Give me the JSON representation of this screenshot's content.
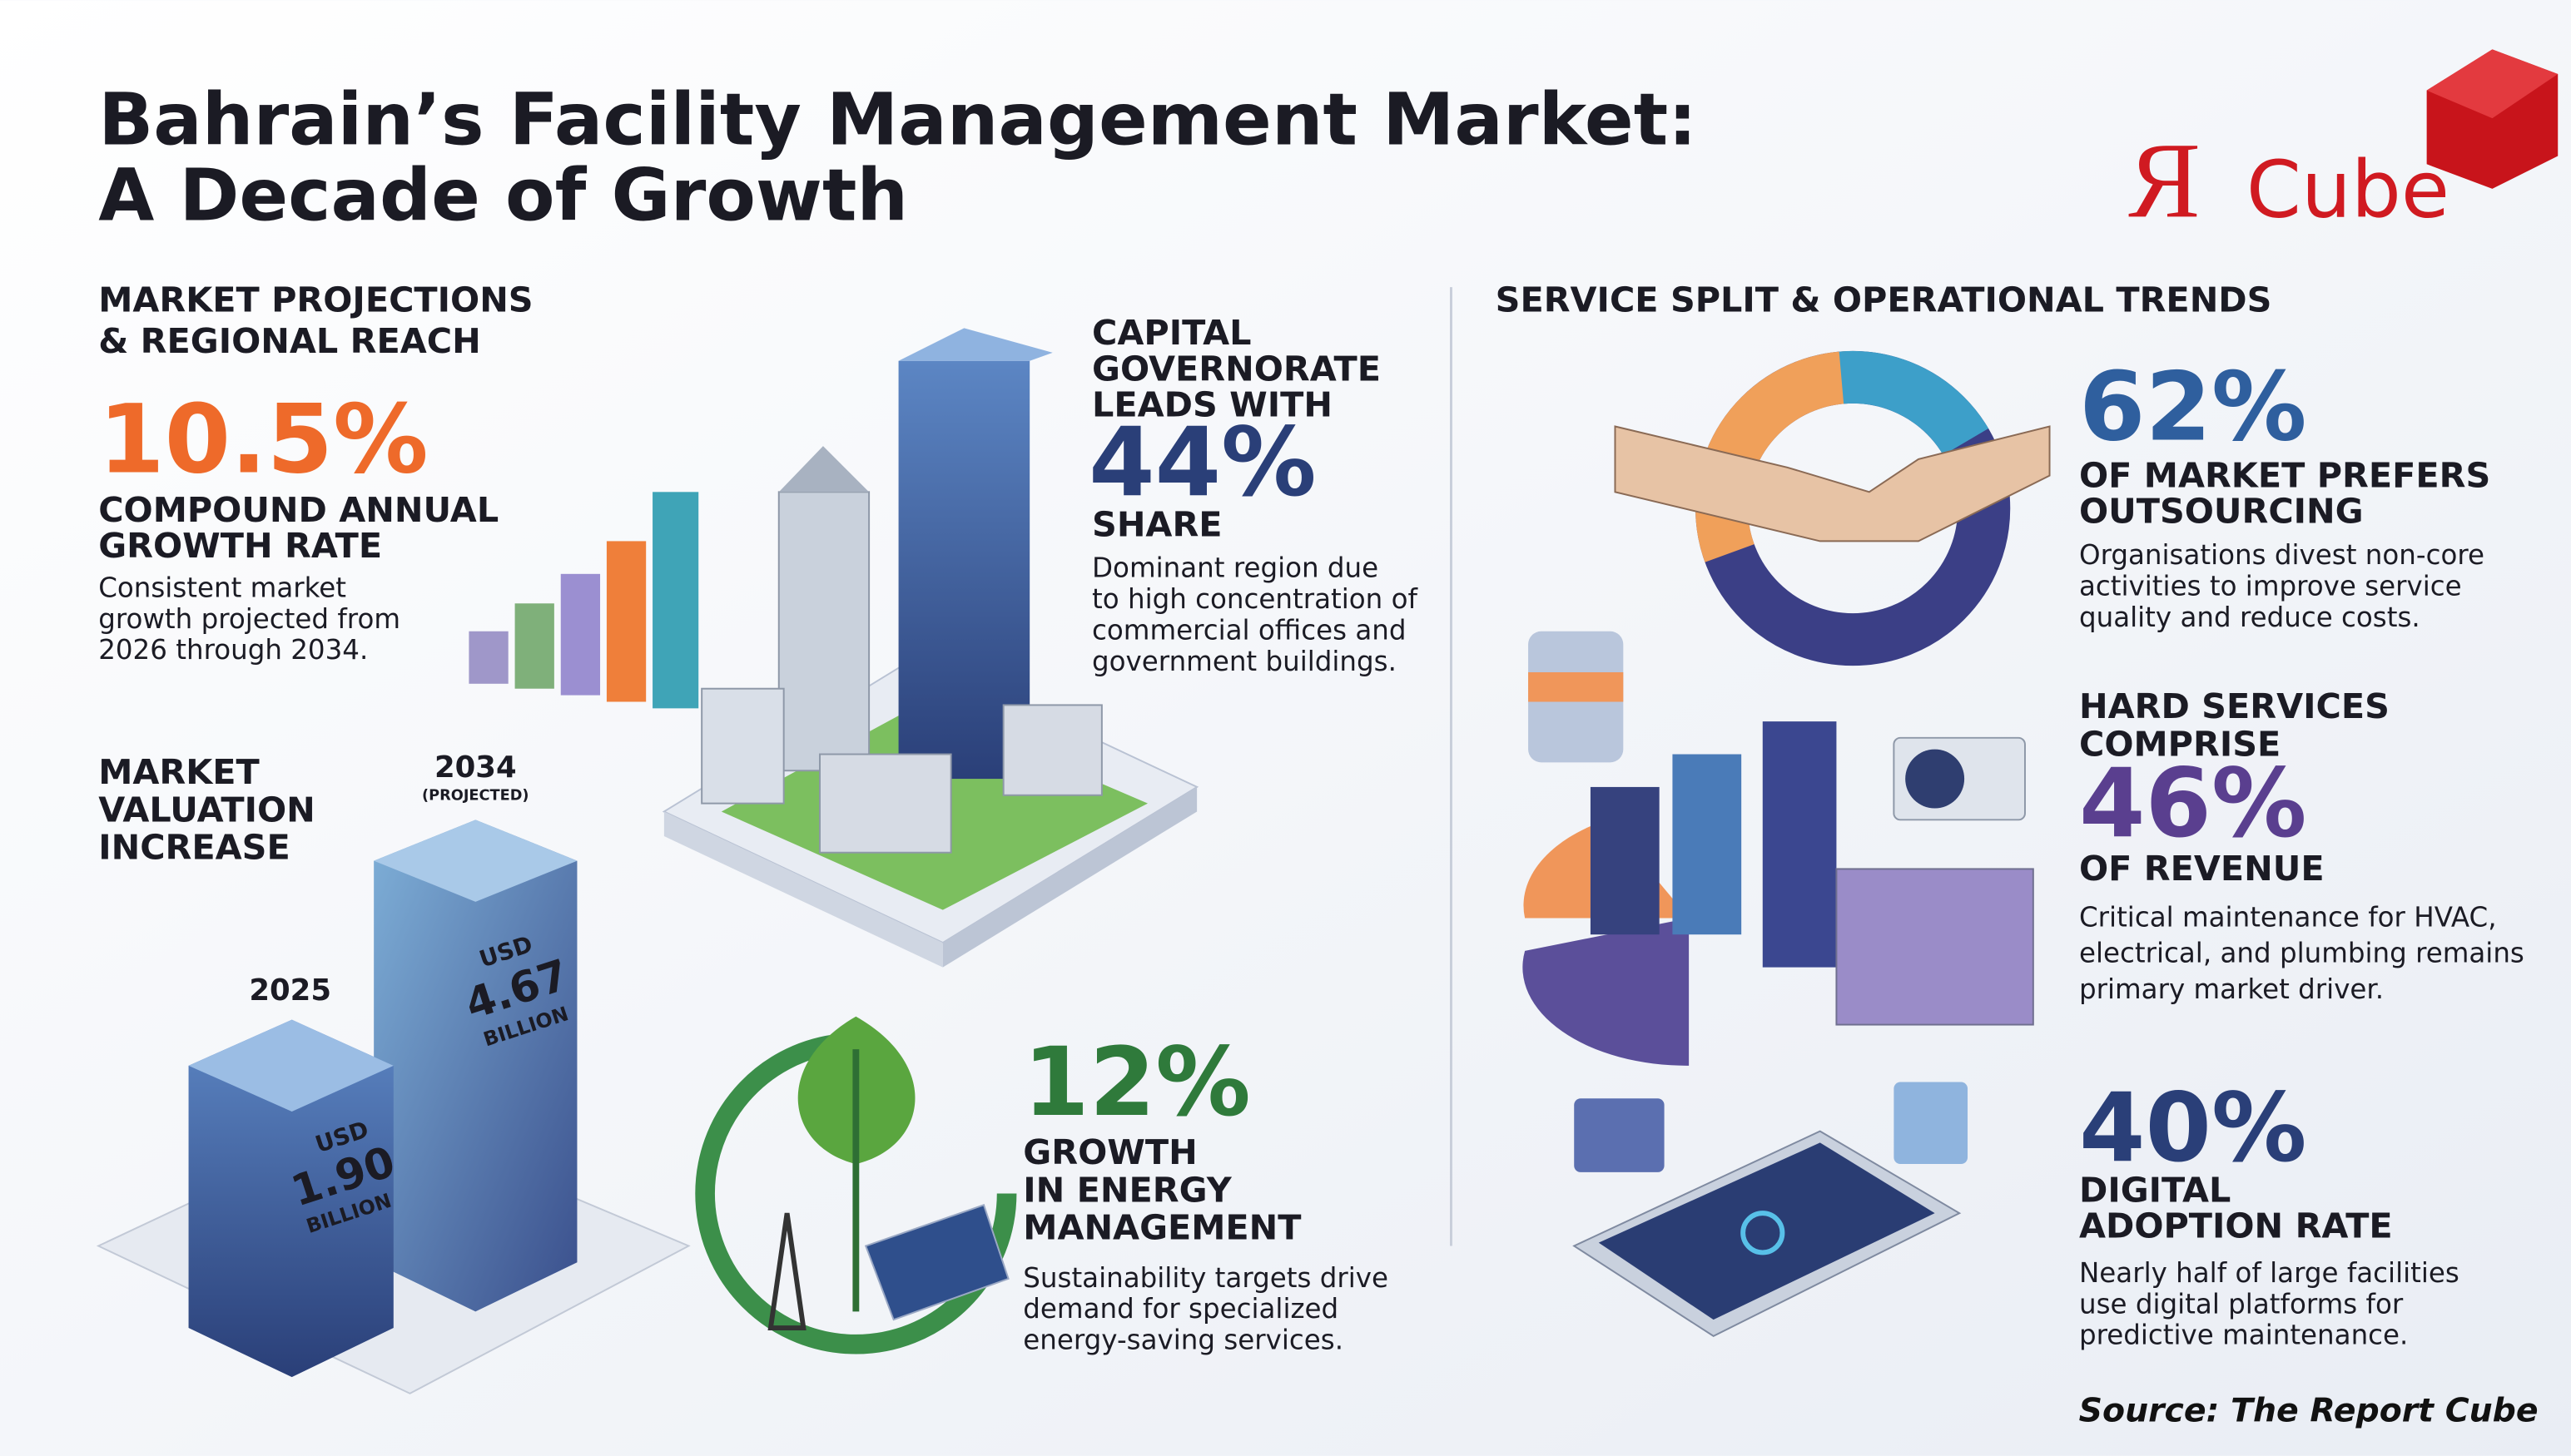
{
  "header": {
    "title": [
      "Bahrain’s Facility Management Market:",
      "A Decade of Growth"
    ]
  },
  "logo": {
    "letter": "Я",
    "word": "Cube"
  },
  "projections": {
    "heading": [
      "MARKET PROJECTIONS",
      "& REGIONAL REACH"
    ],
    "cagr": {
      "value": "10.5%",
      "label": [
        "COMPOUND ANNUAL",
        "GROWTH RATE"
      ],
      "description": [
        "Consistent market",
        "growth projected from",
        "2026 through 2034."
      ]
    }
  },
  "valuation": {
    "heading": [
      "MARKET",
      "VALUATION",
      "INCREASE"
    ],
    "end": {
      "year": "2034",
      "note": "(PROJECTED)",
      "amount": [
        "USD",
        "4.67",
        "BILLION"
      ]
    },
    "start": {
      "year": "2025",
      "amount": [
        "USD",
        "1.90",
        "BILLION"
      ]
    }
  },
  "capital": {
    "heading": [
      "CAPITAL",
      "GOVERNORATE",
      "LEADS WITH"
    ],
    "value": "44%",
    "label": "SHARE",
    "description": [
      "Dominant region due",
      "to high concentration of",
      "commercial offices and",
      "government buildings."
    ]
  },
  "energy": {
    "value": "12%",
    "label": [
      "GROWTH",
      "IN ENERGY",
      "MANAGEMENT"
    ],
    "description": [
      "Sustainability targets drive",
      "demand for specialized",
      "energy-saving services."
    ]
  },
  "services": {
    "heading": "SERVICE SPLIT & OPERATIONAL TRENDS",
    "outsourcing": {
      "value": "62%",
      "label": [
        "OF MARKET PREFERS",
        "OUTSOURCING"
      ],
      "description": [
        "Organisations divest non-core",
        "activities to improve service",
        "quality and reduce costs."
      ]
    },
    "hard": {
      "label_top": [
        "HARD SERVICES",
        "COMPRISE"
      ],
      "value": "46%",
      "label_bottom": "OF REVENUE",
      "description": [
        "Critical maintenance for HVAC,",
        "electrical, and plumbing remains",
        "primary market driver."
      ]
    },
    "digital": {
      "value": "40%",
      "label": [
        "DIGITAL",
        "ADOPTION RATE"
      ],
      "description": [
        "Nearly half of large facilities",
        "use digital platforms for",
        "predictive maintenance."
      ]
    }
  },
  "source": "Source: The Report Cube"
}
